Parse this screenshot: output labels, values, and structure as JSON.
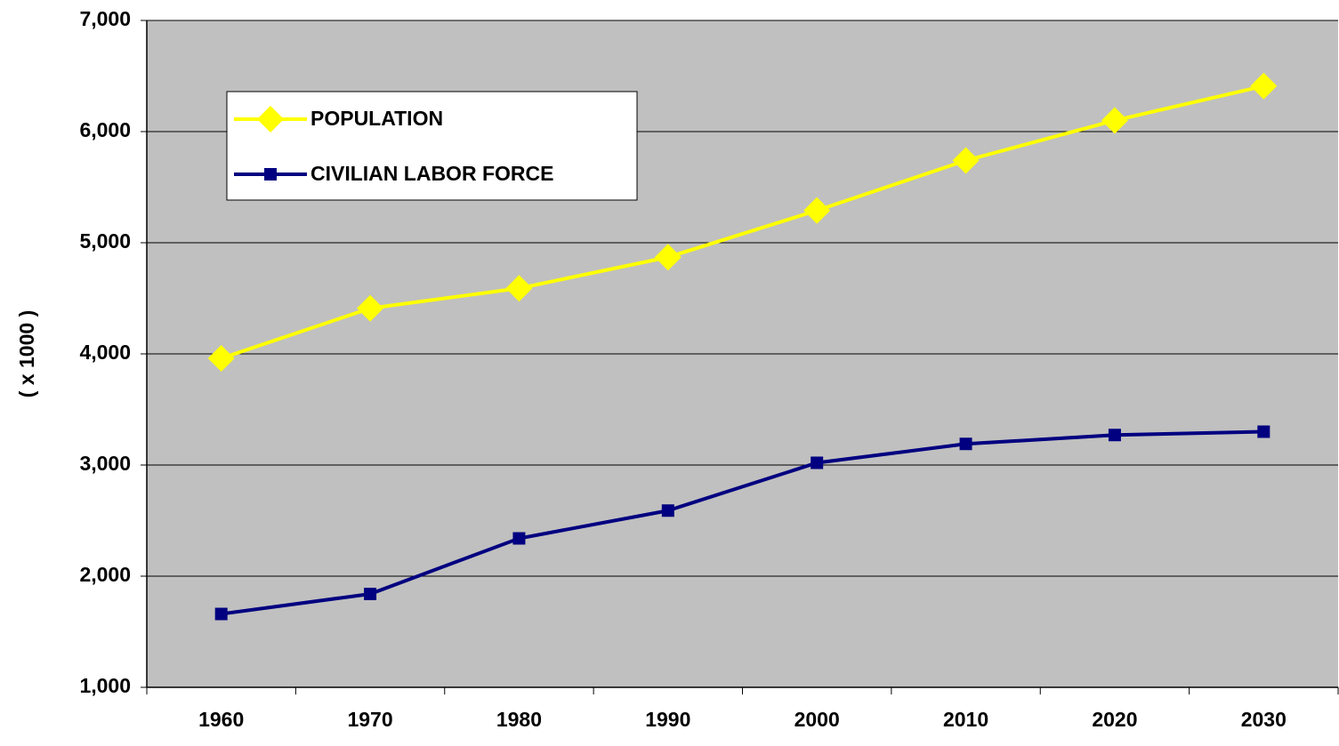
{
  "chart_data": {
    "type": "line",
    "y_label": "( x 1000 )",
    "categories": [
      "1960",
      "1970",
      "1980",
      "1990",
      "2000",
      "2010",
      "2020",
      "2030"
    ],
    "series": [
      {
        "name": "POPULATION",
        "color": "#ffff00",
        "marker": "diamond",
        "values": [
          3960,
          4410,
          4590,
          4870,
          5290,
          5740,
          6100,
          6410
        ]
      },
      {
        "name": "CIVILIAN LABOR FORCE",
        "color": "#000080",
        "marker": "square",
        "values": [
          1660,
          1840,
          2340,
          2590,
          3020,
          3190,
          3270,
          3300
        ]
      }
    ],
    "ylim": [
      1000,
      7000
    ],
    "yticks": [
      {
        "value": 1000,
        "label": "1,000"
      },
      {
        "value": 2000,
        "label": "2,000"
      },
      {
        "value": 3000,
        "label": "3,000"
      },
      {
        "value": 4000,
        "label": "4,000"
      },
      {
        "value": 5000,
        "label": "5,000"
      },
      {
        "value": 6000,
        "label": "6,000"
      },
      {
        "value": 7000,
        "label": "7,000"
      }
    ],
    "grid": true,
    "legend": "upper left",
    "plot_background": "#c0c0c0"
  }
}
